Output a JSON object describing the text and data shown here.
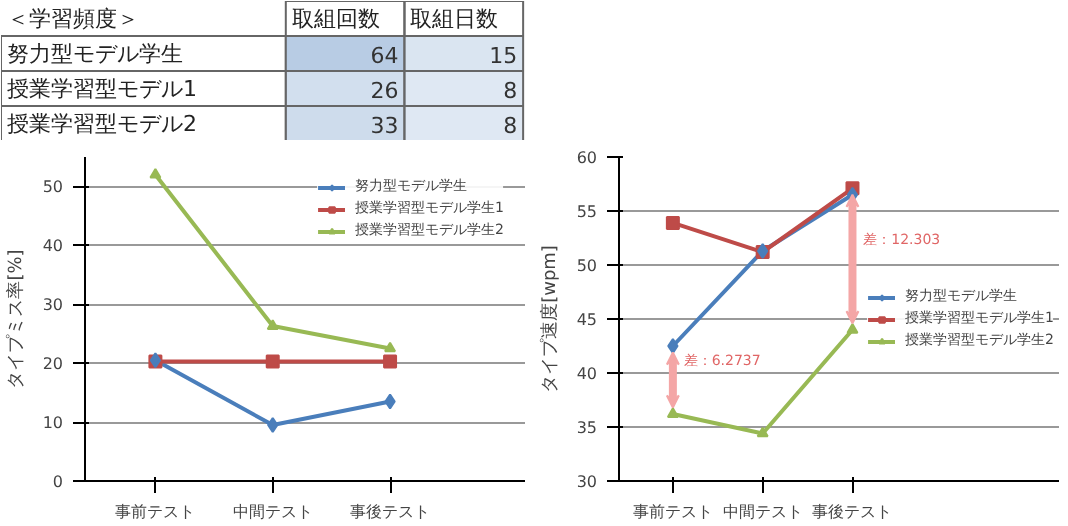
{
  "chart_data": [
    {
      "type": "heatmap",
      "title": "＜学習頻度＞",
      "categories": [
        "取組回数",
        "取組日数"
      ],
      "y_categories": [
        "努力型モデル学生",
        "授業学習型モデル1",
        "授業学習型モデル2"
      ],
      "cells": [
        [
          64,
          15
        ],
        [
          26,
          8
        ],
        [
          33,
          8
        ]
      ],
      "data_labels": true,
      "color": "#b8cce4"
    },
    {
      "type": "line",
      "categories": [
        "事前テスト",
        "中間テスト",
        "事後テスト"
      ],
      "ylabel": "タイプミス率[%]",
      "ylim": [
        0,
        55
      ],
      "yticks": [
        0,
        10,
        20,
        30,
        40,
        50
      ],
      "grid": "y",
      "legend": "top right",
      "series": [
        {
          "name": "努力型モデル学生",
          "color": "#4a7ebb",
          "marker": "diamond",
          "values": [
            20.5,
            9.5,
            13.5
          ]
        },
        {
          "name": "授業学習型モデル学生1",
          "color": "#be4b48",
          "marker": "square",
          "values": [
            20.3,
            20.3,
            20.3
          ]
        },
        {
          "name": "授業学習型モデル学生2",
          "color": "#98b954",
          "marker": "triangle",
          "values": [
            52,
            26.3,
            22.5
          ]
        }
      ]
    },
    {
      "type": "line",
      "categories": [
        "事前テスト",
        "中間テスト",
        "事後テスト"
      ],
      "ylabel": "タイプ速度[wpm]",
      "ylim": [
        30,
        60
      ],
      "yticks": [
        30,
        35,
        40,
        45,
        50,
        55,
        60
      ],
      "grid": "y",
      "legend": "right",
      "series": [
        {
          "name": "努力型モデル学生",
          "color": "#4a7ebb",
          "marker": "diamond",
          "values": [
            42.5,
            51.3,
            56.5
          ]
        },
        {
          "name": "授業学習型モデル学生1",
          "color": "#be4b48",
          "marker": "square",
          "values": [
            53.9,
            51.2,
            57.1
          ]
        },
        {
          "name": "授業学習型モデル学生2",
          "color": "#98b954",
          "marker": "triangle",
          "values": [
            36.2,
            34.4,
            44.0
          ]
        }
      ],
      "annotations": [
        "差：6.2737",
        "差：12.303"
      ]
    }
  ]
}
